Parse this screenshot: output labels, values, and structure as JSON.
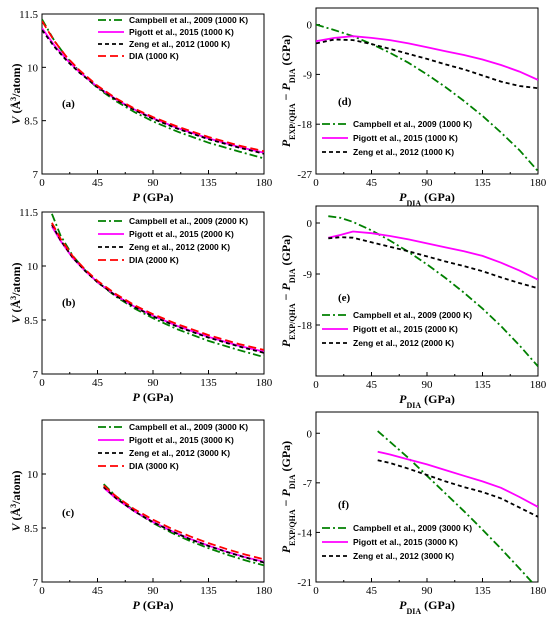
{
  "chart_data": [
    {
      "type": "line",
      "panel_label": "(a)",
      "xlabel": "P (GPa)",
      "ylabel": "V (Å³/atom)",
      "xlim": [
        0,
        180
      ],
      "ylim": [
        7,
        11.5
      ],
      "xticks": [
        0,
        45,
        90,
        135,
        180
      ],
      "yticks": [
        7,
        8.5,
        10,
        11.5
      ],
      "legend_position": "top-right",
      "series": [
        {
          "name": "Campbell et al., 2009 (1000 K)",
          "color": "#008000",
          "dash": "dashdot",
          "x": [
            0,
            10,
            20,
            30,
            45,
            60,
            75,
            90,
            110,
            135,
            160,
            180
          ],
          "y": [
            11.35,
            10.75,
            10.28,
            9.9,
            9.42,
            9.05,
            8.74,
            8.48,
            8.19,
            7.88,
            7.63,
            7.44
          ]
        },
        {
          "name": "Pigott et al., 2015 (1000 K)",
          "color": "#ff00ff",
          "dash": "solid",
          "x": [
            0,
            10,
            20,
            30,
            45,
            60,
            75,
            90,
            110,
            135,
            160,
            180
          ],
          "y": [
            11.1,
            10.62,
            10.22,
            9.88,
            9.45,
            9.1,
            8.81,
            8.57,
            8.29,
            8.0,
            7.76,
            7.6
          ]
        },
        {
          "name": "Zeng et al., 2012 (1000 K)",
          "color": "#000000",
          "dash": "dashed",
          "x": [
            0,
            10,
            20,
            30,
            45,
            60,
            75,
            90,
            110,
            135,
            160,
            180
          ],
          "y": [
            11.05,
            10.58,
            10.19,
            9.86,
            9.44,
            9.09,
            8.8,
            8.55,
            8.27,
            7.98,
            7.74,
            7.57
          ]
        },
        {
          "name": "DIA (1000 K)",
          "color": "#ff0000",
          "dash": "longdash",
          "x": [
            0,
            10,
            20,
            30,
            45,
            60,
            75,
            90,
            110,
            135,
            160,
            180
          ],
          "y": [
            11.3,
            10.74,
            10.29,
            9.93,
            9.48,
            9.13,
            8.84,
            8.6,
            8.33,
            8.04,
            7.8,
            7.64
          ]
        }
      ]
    },
    {
      "type": "line",
      "panel_label": "(d)",
      "xlabel": "P_DIA (GPa)",
      "ylabel": "P_EXP/QHA − P_DIA (GPa)",
      "xlim": [
        0,
        180
      ],
      "ylim": [
        -27,
        3
      ],
      "xticks": [
        0,
        45,
        90,
        135,
        180
      ],
      "yticks": [
        -27,
        -18,
        -9,
        0
      ],
      "legend_position": "bottom-left",
      "series": [
        {
          "name": "Campbell et al., 2009 (1000 K)",
          "color": "#008000",
          "dash": "dashdot",
          "x": [
            0,
            15,
            30,
            45,
            60,
            75,
            90,
            105,
            120,
            135,
            150,
            165,
            180
          ],
          "y": [
            0,
            -1.0,
            -2.1,
            -3.5,
            -5.1,
            -6.9,
            -9.0,
            -11.3,
            -13.8,
            -16.5,
            -19.5,
            -22.7,
            -26.5
          ]
        },
        {
          "name": "Pigott et al., 2015 (1000 K)",
          "color": "#ff00ff",
          "dash": "solid",
          "x": [
            0,
            15,
            30,
            45,
            60,
            75,
            90,
            105,
            120,
            135,
            150,
            165,
            180
          ],
          "y": [
            -3.0,
            -2.4,
            -2.1,
            -2.4,
            -2.8,
            -3.4,
            -4.1,
            -4.8,
            -5.5,
            -6.3,
            -7.3,
            -8.5,
            -10.0
          ]
        },
        {
          "name": "Zeng et al., 2012 (1000 K)",
          "color": "#000000",
          "dash": "dashed",
          "x": [
            0,
            15,
            30,
            45,
            60,
            75,
            90,
            105,
            120,
            135,
            150,
            165,
            180
          ],
          "y": [
            -3.4,
            -2.7,
            -2.8,
            -3.5,
            -4.4,
            -5.3,
            -6.2,
            -7.2,
            -8.1,
            -9.2,
            -10.3,
            -11.1,
            -11.5
          ]
        }
      ]
    },
    {
      "type": "line",
      "panel_label": "(b)",
      "xlabel": "P (GPa)",
      "ylabel": "V (Å³/atom)",
      "xlim": [
        0,
        180
      ],
      "ylim": [
        7,
        11.5
      ],
      "xticks": [
        0,
        45,
        90,
        135,
        180
      ],
      "yticks": [
        7,
        8.5,
        10,
        11.5
      ],
      "legend_position": "top-right",
      "series": [
        {
          "name": "Campbell et al., 2009 (2000 K)",
          "color": "#008000",
          "dash": "dashdot",
          "x": [
            8,
            15,
            25,
            35,
            45,
            60,
            75,
            90,
            110,
            135,
            160,
            180
          ],
          "y": [
            11.45,
            10.85,
            10.28,
            9.88,
            9.55,
            9.15,
            8.82,
            8.55,
            8.24,
            7.92,
            7.66,
            7.47
          ]
        },
        {
          "name": "Pigott et al., 2015 (2000 K)",
          "color": "#ff00ff",
          "dash": "solid",
          "x": [
            8,
            15,
            25,
            35,
            45,
            60,
            75,
            90,
            110,
            135,
            160,
            180
          ],
          "y": [
            11.1,
            10.7,
            10.22,
            9.86,
            9.55,
            9.18,
            8.87,
            8.62,
            8.33,
            8.03,
            7.78,
            7.62
          ]
        },
        {
          "name": "Zeng et al., 2012 (2000 K)",
          "color": "#000000",
          "dash": "dashed",
          "x": [
            8,
            15,
            25,
            35,
            45,
            60,
            75,
            90,
            110,
            135,
            160,
            180
          ],
          "y": [
            11.15,
            10.72,
            10.23,
            9.86,
            9.55,
            9.17,
            8.86,
            8.6,
            8.31,
            8.01,
            7.76,
            7.59
          ]
        },
        {
          "name": "DIA (2000 K)",
          "color": "#ff0000",
          "dash": "longdash",
          "x": [
            8,
            15,
            25,
            35,
            45,
            60,
            75,
            90,
            110,
            135,
            160,
            180
          ],
          "y": [
            11.2,
            10.76,
            10.27,
            9.9,
            9.59,
            9.22,
            8.91,
            8.66,
            8.38,
            8.08,
            7.83,
            7.67
          ]
        }
      ]
    },
    {
      "type": "line",
      "panel_label": "(e)",
      "xlabel": "P_DIA (GPa)",
      "ylabel": "P_EXP/QHA − P_DIA (GPa)",
      "xlim": [
        0,
        180
      ],
      "ylim": [
        -27,
        3
      ],
      "xticks": [
        0,
        45,
        90,
        135,
        180
      ],
      "yticks": [
        -18,
        -9,
        0
      ],
      "legend_position": "bottom-left",
      "series": [
        {
          "name": "Campbell et al., 2009 (2000 K)",
          "color": "#008000",
          "dash": "dashdot",
          "x": [
            10,
            20,
            30,
            45,
            60,
            75,
            90,
            105,
            120,
            135,
            150,
            165,
            180
          ],
          "y": [
            1.2,
            0.9,
            0.2,
            -1.3,
            -3.1,
            -5.1,
            -7.3,
            -9.7,
            -12.3,
            -15.1,
            -18.2,
            -21.6,
            -25.3
          ]
        },
        {
          "name": "Pigott et al., 2015 (2000 K)",
          "color": "#ff00ff",
          "dash": "solid",
          "x": [
            10,
            20,
            30,
            45,
            60,
            75,
            90,
            105,
            120,
            135,
            150,
            165,
            180
          ],
          "y": [
            -2.6,
            -2.1,
            -1.5,
            -1.8,
            -2.3,
            -2.9,
            -3.6,
            -4.3,
            -5.0,
            -5.8,
            -7.0,
            -8.4,
            -10.0
          ]
        },
        {
          "name": "Zeng et al., 2012 (2000 K)",
          "color": "#000000",
          "dash": "dashed",
          "x": [
            10,
            20,
            30,
            45,
            60,
            75,
            90,
            105,
            120,
            135,
            150,
            165,
            180
          ],
          "y": [
            -2.7,
            -2.5,
            -2.6,
            -3.4,
            -4.2,
            -5.0,
            -5.9,
            -6.8,
            -7.6,
            -8.5,
            -9.6,
            -10.6,
            -11.5
          ]
        }
      ]
    },
    {
      "type": "line",
      "panel_label": "(c)",
      "xlabel": "P (GPa)",
      "ylabel": "V (Å³/atom)",
      "xlim": [
        0,
        180
      ],
      "ylim": [
        7,
        11.5
      ],
      "xticks": [
        0,
        45,
        90,
        135,
        180
      ],
      "yticks": [
        7,
        8.5,
        10
      ],
      "legend_position": "top-right",
      "series": [
        {
          "name": "Campbell et al., 2009 (3000 K)",
          "color": "#008000",
          "dash": "dashdot",
          "x": [
            50,
            60,
            75,
            90,
            105,
            120,
            135,
            150,
            165,
            180
          ],
          "y": [
            9.72,
            9.38,
            8.97,
            8.64,
            8.37,
            8.14,
            7.94,
            7.76,
            7.6,
            7.46
          ]
        },
        {
          "name": "Pigott et al., 2015 (3000 K)",
          "color": "#ff00ff",
          "dash": "solid",
          "x": [
            50,
            60,
            75,
            90,
            105,
            120,
            135,
            150,
            165,
            180
          ],
          "y": [
            9.62,
            9.32,
            8.96,
            8.67,
            8.42,
            8.2,
            8.01,
            7.84,
            7.69,
            7.56
          ]
        },
        {
          "name": "Zeng et al., 2012 (3000 K)",
          "color": "#000000",
          "dash": "dashed",
          "x": [
            50,
            60,
            75,
            90,
            105,
            120,
            135,
            150,
            165,
            180
          ],
          "y": [
            9.64,
            9.33,
            8.96,
            8.66,
            8.41,
            8.19,
            8.0,
            7.83,
            7.68,
            7.54
          ]
        },
        {
          "name": "DIA (3000 K)",
          "color": "#ff0000",
          "dash": "longdash",
          "x": [
            50,
            60,
            75,
            90,
            105,
            120,
            135,
            150,
            165,
            180
          ],
          "y": [
            9.68,
            9.38,
            9.02,
            8.73,
            8.48,
            8.27,
            8.08,
            7.91,
            7.76,
            7.63
          ]
        }
      ]
    },
    {
      "type": "line",
      "panel_label": "(f)",
      "xlabel": "P_DIA (GPa)",
      "ylabel": "P_EXP/QHA − P_DIA (GPa)",
      "xlim": [
        0,
        180
      ],
      "ylim": [
        -21,
        3
      ],
      "xticks": [
        0,
        45,
        90,
        135,
        180
      ],
      "yticks": [
        -21,
        -14,
        -7,
        0
      ],
      "legend_position": "bottom-left",
      "series": [
        {
          "name": "Campbell et al., 2009 (3000 K)",
          "color": "#008000",
          "dash": "dashdot",
          "x": [
            50,
            60,
            75,
            90,
            105,
            120,
            135,
            150,
            165,
            175
          ],
          "y": [
            0.3,
            -1.2,
            -3.5,
            -6.0,
            -8.5,
            -11.0,
            -13.6,
            -16.3,
            -19.1,
            -21.0
          ]
        },
        {
          "name": "Pigott et al., 2015 (3000 K)",
          "color": "#ff00ff",
          "dash": "solid",
          "x": [
            50,
            60,
            75,
            90,
            105,
            120,
            135,
            150,
            165,
            180
          ],
          "y": [
            -2.6,
            -3.0,
            -3.7,
            -4.4,
            -5.2,
            -6.0,
            -6.8,
            -7.7,
            -9.0,
            -10.4
          ]
        },
        {
          "name": "Zeng et al., 2012 (3000 K)",
          "color": "#000000",
          "dash": "dashed",
          "x": [
            50,
            60,
            75,
            90,
            105,
            120,
            135,
            150,
            165,
            180
          ],
          "y": [
            -3.8,
            -4.2,
            -5.0,
            -5.9,
            -6.8,
            -7.6,
            -8.3,
            -9.2,
            -10.5,
            -11.8
          ]
        }
      ]
    }
  ]
}
